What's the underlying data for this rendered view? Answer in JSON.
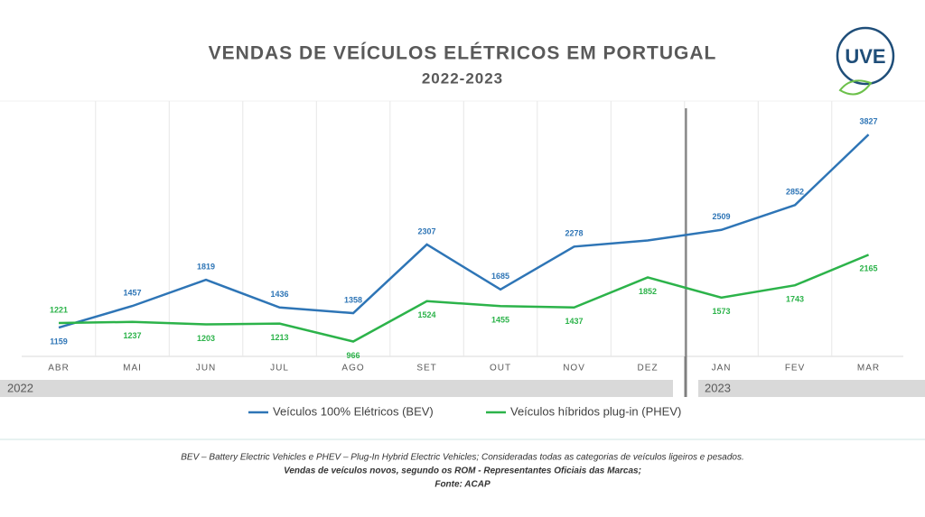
{
  "chart_data": {
    "type": "line",
    "title": "VENDAS DE VEÍCULOS ELÉTRICOS EM PORTUGAL",
    "subtitle": "2022-2023",
    "logo": "UVE",
    "categories": [
      "ABR",
      "MAI",
      "JUN",
      "JUL",
      "AGO",
      "SET",
      "OUT",
      "NOV",
      "DEZ",
      "JAN",
      "FEV",
      "MAR"
    ],
    "periods": [
      "2022",
      "2023"
    ],
    "series": [
      {
        "name": "Veículos 100% Elétricos (BEV)",
        "color": "#2e75b6",
        "values": [
          1159,
          1457,
          1819,
          1436,
          1358,
          2307,
          1685,
          2278,
          2363,
          2509,
          2852,
          3827
        ],
        "show_labels": [
          true,
          true,
          true,
          true,
          true,
          true,
          true,
          true,
          false,
          true,
          true,
          true
        ]
      },
      {
        "name": "Veículos híbridos plug-in (PHEV)",
        "color": "#2cb34a",
        "values": [
          1221,
          1237,
          1203,
          1213,
          966,
          1524,
          1455,
          1437,
          1852,
          1573,
          1743,
          2165
        ],
        "show_labels": [
          true,
          true,
          true,
          true,
          true,
          true,
          true,
          true,
          true,
          true,
          true,
          true
        ]
      }
    ],
    "ylim": [
      760,
      4290
    ],
    "grid": true,
    "legend": "bottom",
    "notes": [
      "BEV – Battery Electric Vehicles e PHEV – Plug-In Hybrid Electric Vehicles; Consideradas todas as categorias de veículos ligeiros e pesados.",
      "Vendas de veículos novos, segundo os ROM - Representantes Oficiais das Marcas;",
      "Fonte: ACAP"
    ]
  }
}
